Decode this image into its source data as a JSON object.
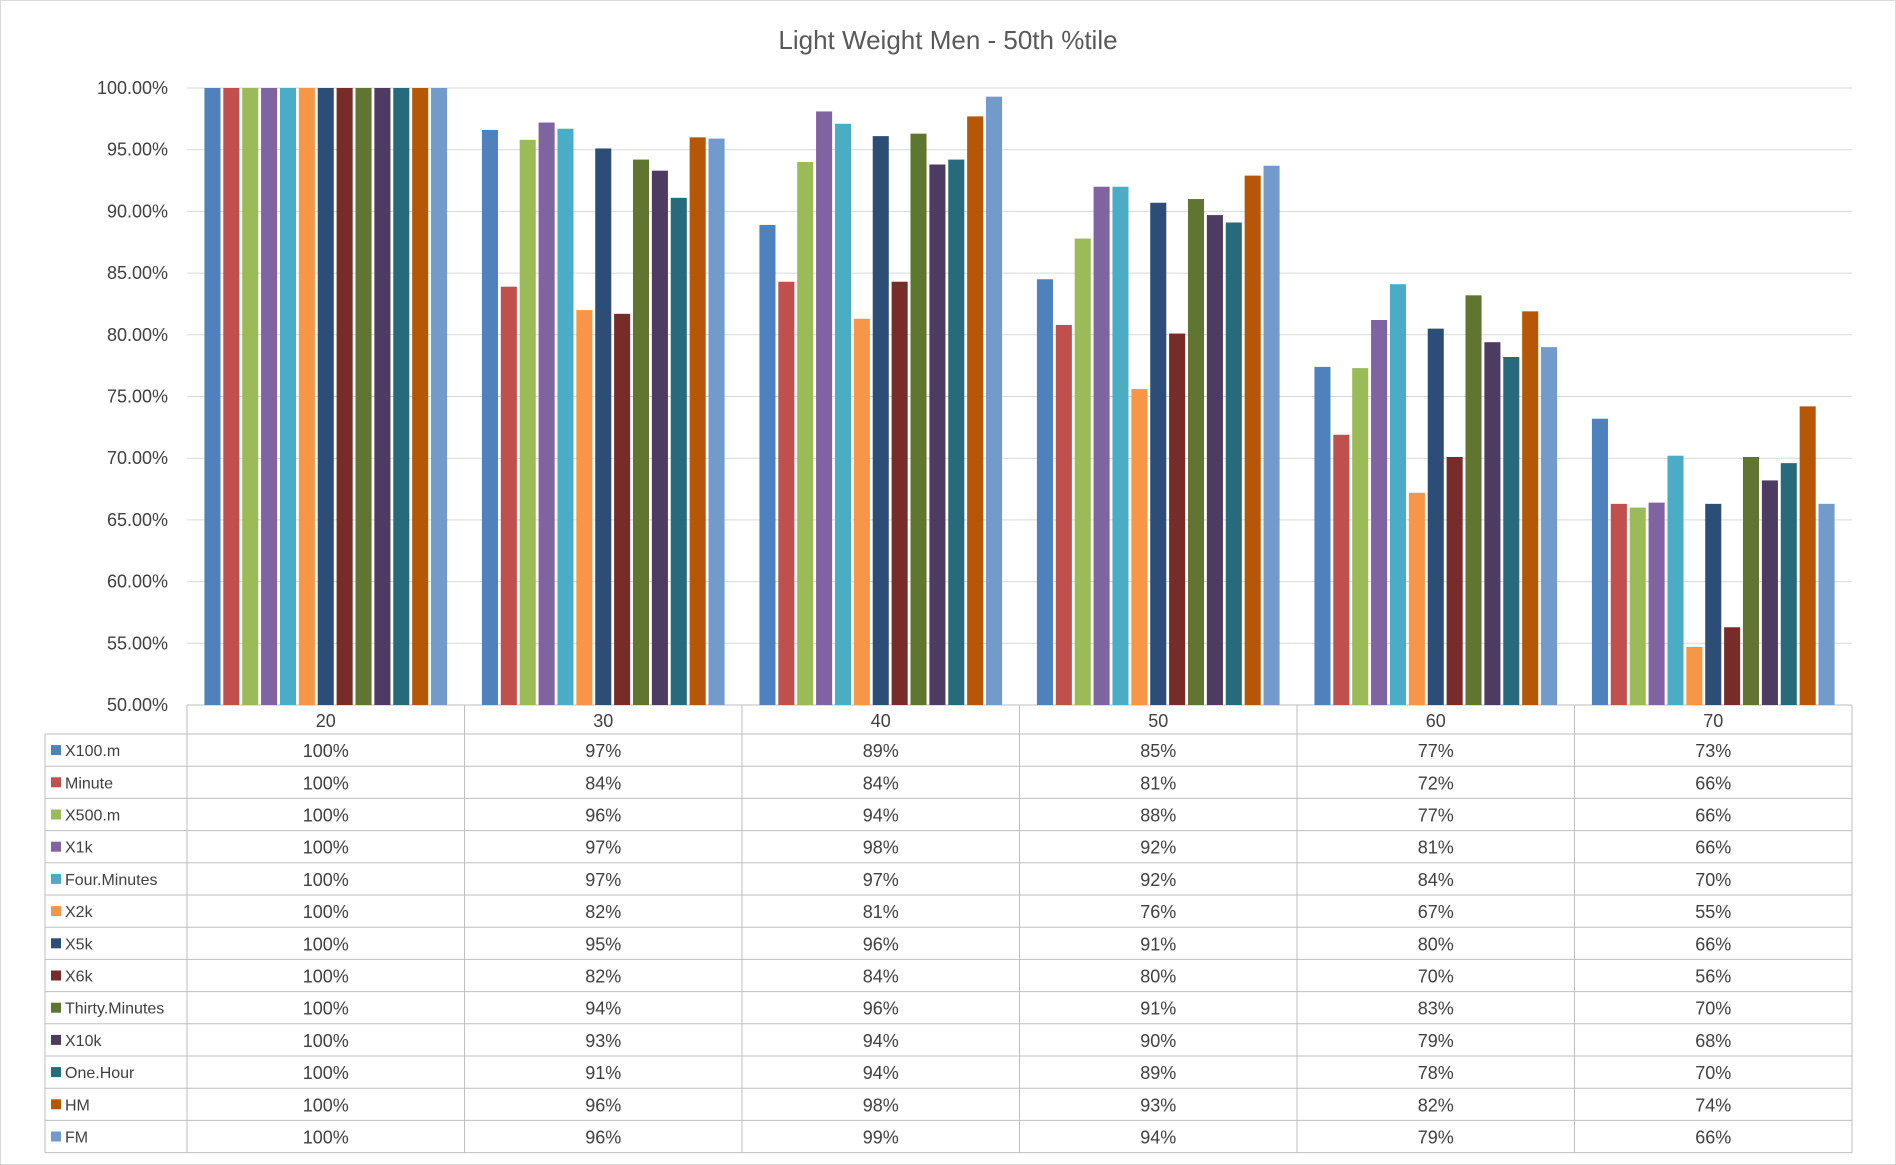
{
  "chart_data": {
    "type": "bar",
    "title": "Light Weight Men  - 50th %tile",
    "xlabel": "",
    "ylabel": "",
    "ylim": [
      0.5,
      1.0
    ],
    "y_ticks": [
      "100.00%",
      "95.00%",
      "90.00%",
      "85.00%",
      "80.00%",
      "75.00%",
      "70.00%",
      "65.00%",
      "60.00%",
      "55.00%",
      "50.00%"
    ],
    "grid": true,
    "legend": "data-table",
    "categories": [
      "20",
      "30",
      "40",
      "50",
      "60",
      "70"
    ],
    "series": [
      {
        "name": "X100.m",
        "color": "#4f81bd",
        "values": [
          1.0,
          0.966,
          0.889,
          0.845,
          0.774,
          0.732
        ],
        "labels": [
          "100%",
          "97%",
          "89%",
          "85%",
          "77%",
          "73%"
        ]
      },
      {
        "name": "Minute",
        "color": "#c0504d",
        "values": [
          1.0,
          0.839,
          0.843,
          0.808,
          0.719,
          0.663
        ],
        "labels": [
          "100%",
          "84%",
          "84%",
          "81%",
          "72%",
          "66%"
        ]
      },
      {
        "name": "X500.m",
        "color": "#9bbb59",
        "values": [
          1.0,
          0.958,
          0.94,
          0.878,
          0.773,
          0.66
        ],
        "labels": [
          "100%",
          "96%",
          "94%",
          "88%",
          "77%",
          "66%"
        ]
      },
      {
        "name": "X1k",
        "color": "#8064a2",
        "values": [
          1.0,
          0.972,
          0.981,
          0.92,
          0.812,
          0.664
        ],
        "labels": [
          "100%",
          "97%",
          "98%",
          "92%",
          "81%",
          "66%"
        ]
      },
      {
        "name": "Four.Minutes",
        "color": "#4bacc6",
        "values": [
          1.0,
          0.967,
          0.971,
          0.92,
          0.841,
          0.702
        ],
        "labels": [
          "100%",
          "97%",
          "97%",
          "92%",
          "84%",
          "70%"
        ]
      },
      {
        "name": "X2k",
        "color": "#f79646",
        "values": [
          1.0,
          0.82,
          0.813,
          0.756,
          0.672,
          0.547
        ],
        "labels": [
          "100%",
          "82%",
          "81%",
          "76%",
          "67%",
          "55%"
        ]
      },
      {
        "name": "X5k",
        "color": "#2c4d75",
        "values": [
          1.0,
          0.951,
          0.961,
          0.907,
          0.805,
          0.663
        ],
        "labels": [
          "100%",
          "95%",
          "96%",
          "91%",
          "80%",
          "66%"
        ]
      },
      {
        "name": "X6k",
        "color": "#772c2a",
        "values": [
          1.0,
          0.817,
          0.843,
          0.801,
          0.701,
          0.563
        ],
        "labels": [
          "100%",
          "82%",
          "84%",
          "80%",
          "70%",
          "56%"
        ]
      },
      {
        "name": "Thirty.Minutes",
        "color": "#5f7530",
        "values": [
          1.0,
          0.942,
          0.963,
          0.91,
          0.832,
          0.701
        ],
        "labels": [
          "100%",
          "94%",
          "96%",
          "91%",
          "83%",
          "70%"
        ]
      },
      {
        "name": "X10k",
        "color": "#4d3b62",
        "values": [
          1.0,
          0.933,
          0.938,
          0.897,
          0.794,
          0.682
        ],
        "labels": [
          "100%",
          "93%",
          "94%",
          "90%",
          "79%",
          "68%"
        ]
      },
      {
        "name": "One.Hour",
        "color": "#276a7c",
        "values": [
          1.0,
          0.911,
          0.942,
          0.891,
          0.782,
          0.696
        ],
        "labels": [
          "100%",
          "91%",
          "94%",
          "89%",
          "78%",
          "70%"
        ]
      },
      {
        "name": "HM",
        "color": "#b65708",
        "values": [
          1.0,
          0.96,
          0.977,
          0.929,
          0.819,
          0.742
        ],
        "labels": [
          "100%",
          "96%",
          "98%",
          "93%",
          "82%",
          "74%"
        ]
      },
      {
        "name": "FM",
        "color": "#729aca",
        "values": [
          1.0,
          0.959,
          0.993,
          0.937,
          0.79,
          0.663
        ],
        "labels": [
          "100%",
          "96%",
          "99%",
          "94%",
          "79%",
          "66%"
        ]
      }
    ]
  }
}
